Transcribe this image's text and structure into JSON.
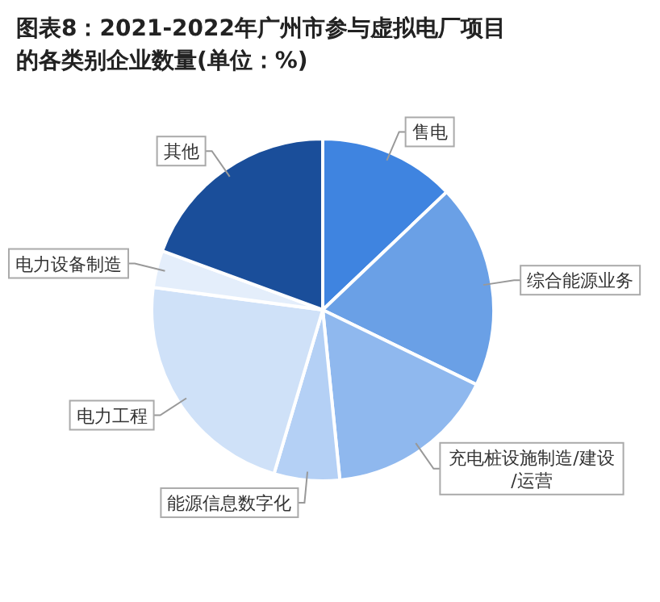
{
  "chart_data": {
    "type": "pie",
    "title": "图表8：2021-2022年广州市参与虚拟电厂项目的各类别企业数量(单位：%)",
    "categories": [
      "售电",
      "综合能源业务",
      "充电桩设施制造/建设/运营",
      "能源信息数字化",
      "电力工程",
      "电力设备制造",
      "其他"
    ],
    "values": [
      12.9,
      19.3,
      16.2,
      6.2,
      22.5,
      3.5,
      19.4
    ],
    "colors": [
      "#3f84e0",
      "#6aa0e6",
      "#8fb8ee",
      "#b4d0f5",
      "#cfe1f8",
      "#e4eefb",
      "#1a4e9a"
    ]
  }
}
